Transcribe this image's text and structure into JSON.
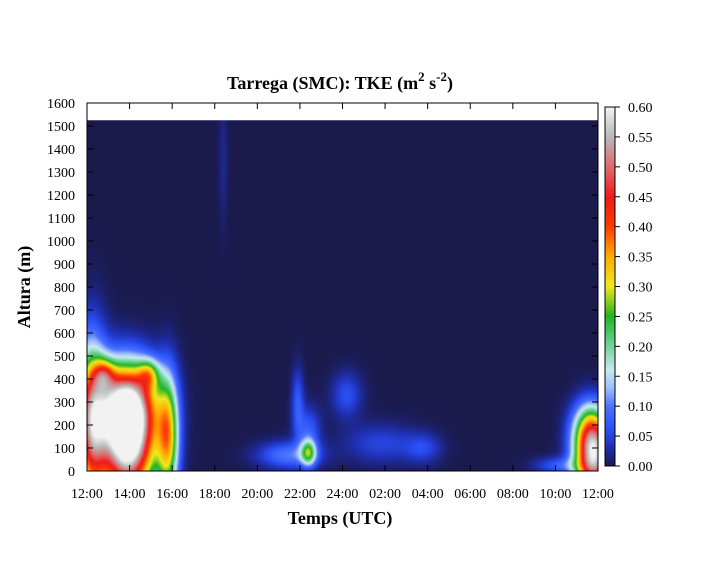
{
  "chart_data": {
    "type": "heatmap",
    "title": {
      "prefix": "Tarrega (SMC): TKE (m",
      "sup1": "2",
      "mid": " s",
      "sup2": "-2",
      "suffix": ")"
    },
    "xlabel": "Temps (UTC)",
    "ylabel": "Altura (m)",
    "x_tick_labels": [
      "12:00",
      "14:00",
      "16:00",
      "18:00",
      "20:00",
      "22:00",
      "24:00",
      "02:00",
      "04:00",
      "06:00",
      "08:00",
      "10:00",
      "12:00"
    ],
    "x_range_hours": [
      0,
      24
    ],
    "ylim": [
      0,
      1600
    ],
    "y_ticks": [
      0,
      100,
      200,
      300,
      400,
      500,
      600,
      700,
      800,
      900,
      1000,
      1100,
      1200,
      1300,
      1400,
      1500,
      1600
    ],
    "data_top_altitude": 1525,
    "colorbar": {
      "range": [
        0,
        0.6
      ],
      "ticks": [
        "0.00",
        "0.05",
        "0.10",
        "0.15",
        "0.20",
        "0.25",
        "0.30",
        "0.35",
        "0.40",
        "0.45",
        "0.50",
        "0.55",
        "0.60"
      ],
      "stops": [
        {
          "v": 0.0,
          "color": "#1a1a4d"
        },
        {
          "v": 0.03,
          "color": "#1f2fb0"
        },
        {
          "v": 0.06,
          "color": "#2a4ff5"
        },
        {
          "v": 0.1,
          "color": "#4d73ff"
        },
        {
          "v": 0.13,
          "color": "#9fbdfb"
        },
        {
          "v": 0.16,
          "color": "#c8eaf0"
        },
        {
          "v": 0.2,
          "color": "#6fd49b"
        },
        {
          "v": 0.25,
          "color": "#22b422"
        },
        {
          "v": 0.3,
          "color": "#f0e81e"
        },
        {
          "v": 0.35,
          "color": "#ffae00"
        },
        {
          "v": 0.4,
          "color": "#ff3c00"
        },
        {
          "v": 0.45,
          "color": "#ee1a1a"
        },
        {
          "v": 0.5,
          "color": "#e06a6a"
        },
        {
          "v": 0.55,
          "color": "#b8b8b8"
        },
        {
          "v": 0.6,
          "color": "#f2f2f2"
        }
      ]
    },
    "features": [
      {
        "name": "daytime-plume",
        "t": 1.9,
        "z": 120,
        "st": 0.9,
        "sz": 170,
        "v": 0.62
      },
      {
        "name": "daytime-plume-left",
        "t": 0.2,
        "z": 200,
        "st": 0.5,
        "sz": 230,
        "v": 0.42
      },
      {
        "name": "daytime-plume-upper",
        "t": 1.8,
        "z": 300,
        "st": 1.0,
        "sz": 120,
        "v": 0.4
      },
      {
        "name": "plume-crest-left",
        "t": 0.8,
        "z": 420,
        "st": 0.35,
        "sz": 45,
        "v": 0.18
      },
      {
        "name": "plume-crest-right",
        "t": 2.9,
        "z": 420,
        "st": 0.35,
        "sz": 45,
        "v": 0.18
      },
      {
        "name": "plume-decay",
        "t": 3.8,
        "z": 150,
        "st": 0.35,
        "sz": 180,
        "v": 0.3
      },
      {
        "name": "evening-low",
        "t": 9.5,
        "z": 70,
        "st": 1.0,
        "sz": 40,
        "v": 0.1
      },
      {
        "name": "night-burst-22",
        "t": 10.4,
        "z": 80,
        "st": 0.25,
        "sz": 40,
        "v": 0.2
      },
      {
        "name": "night-burst-22b",
        "t": 10.4,
        "z": 180,
        "st": 0.4,
        "sz": 70,
        "v": 0.07
      },
      {
        "name": "night-band-2230",
        "t": 9.9,
        "z": 300,
        "st": 0.2,
        "sz": 100,
        "v": 0.07
      },
      {
        "name": "night-blob-24",
        "t": 12.2,
        "z": 330,
        "st": 0.5,
        "sz": 70,
        "v": 0.06
      },
      {
        "name": "night-blob-0130",
        "t": 13.8,
        "z": 120,
        "st": 1.2,
        "sz": 60,
        "v": 0.05
      },
      {
        "name": "night-blob-0300",
        "t": 15.8,
        "z": 100,
        "st": 0.6,
        "sz": 45,
        "v": 0.05
      },
      {
        "name": "morning-plume",
        "t": 23.8,
        "z": 60,
        "st": 0.6,
        "sz": 110,
        "v": 0.55
      },
      {
        "name": "morning-plume-upper",
        "t": 23.6,
        "z": 190,
        "st": 0.55,
        "sz": 80,
        "v": 0.18
      },
      {
        "name": "morning-low",
        "t": 22.2,
        "z": 25,
        "st": 0.8,
        "sz": 25,
        "v": 0.07
      },
      {
        "name": "faint-streak",
        "t": 6.4,
        "z": 1350,
        "st": 0.15,
        "sz": 200,
        "v": 0.02
      }
    ]
  }
}
